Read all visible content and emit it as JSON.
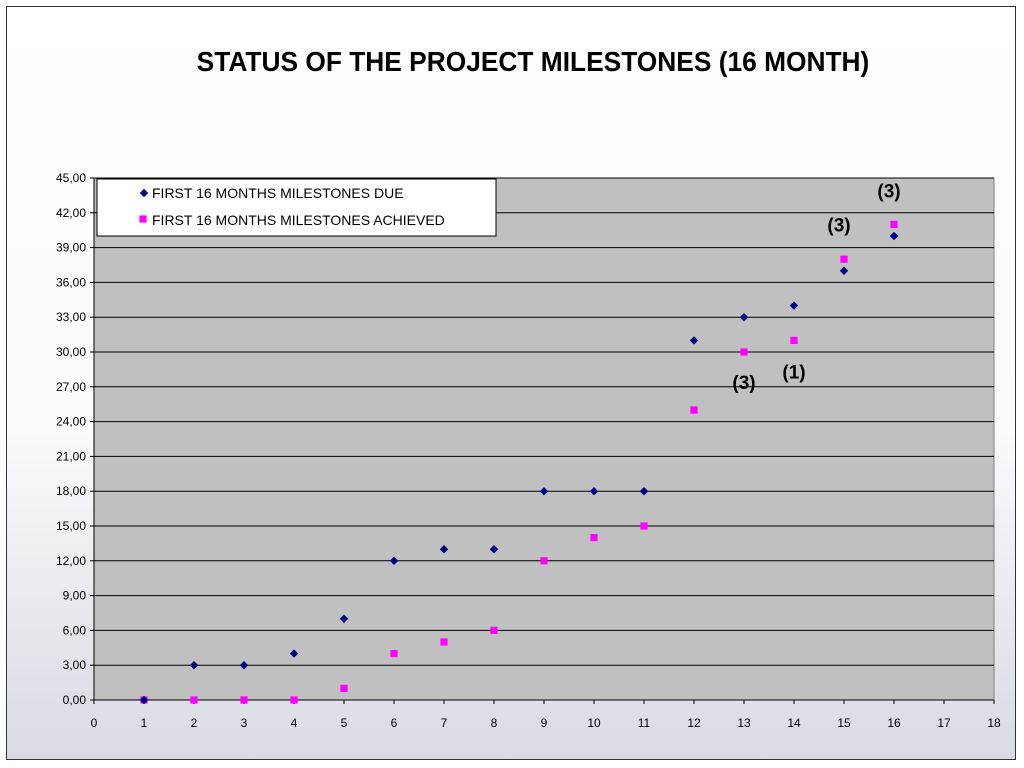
{
  "colors": {
    "plot_background": "#c0c0c0",
    "gridline": "#000000",
    "due_series": "#000080",
    "achieved_series": "#ff00ff"
  },
  "chart_data": {
    "type": "scatter",
    "title": "STATUS OF THE PROJECT MILESTONES (16 MONTH)",
    "xlabel": "",
    "ylabel": "",
    "xlim": [
      0,
      18
    ],
    "ylim": [
      0,
      45
    ],
    "x_ticks": [
      "0",
      "1",
      "2",
      "3",
      "4",
      "5",
      "6",
      "7",
      "8",
      "9",
      "10",
      "11",
      "12",
      "13",
      "14",
      "15",
      "16",
      "17",
      "18"
    ],
    "y_ticks": [
      "0,00",
      "3,00",
      "6,00",
      "9,00",
      "12,00",
      "15,00",
      "18,00",
      "21,00",
      "24,00",
      "27,00",
      "30,00",
      "33,00",
      "36,00",
      "39,00",
      "42,00",
      "45,00"
    ],
    "grid": "horizontal",
    "legend_position": "top-left",
    "series": [
      {
        "name": "FIRST 16 MONTHS MILESTONES DUE",
        "marker": "diamond",
        "x": [
          1,
          2,
          3,
          4,
          5,
          6,
          7,
          8,
          9,
          10,
          11,
          12,
          13,
          14,
          15,
          16
        ],
        "y": [
          0,
          3,
          3,
          4,
          7,
          12,
          13,
          13,
          18,
          18,
          18,
          31,
          33,
          34,
          37,
          40
        ]
      },
      {
        "name": "FIRST 16 MONTHS MILESTONES ACHIEVED",
        "marker": "square",
        "x": [
          1,
          2,
          3,
          4,
          5,
          6,
          7,
          8,
          9,
          10,
          11,
          12,
          13,
          14,
          15,
          16
        ],
        "y": [
          0,
          0,
          0,
          0,
          1,
          4,
          5,
          6,
          12,
          14,
          15,
          25,
          30,
          31,
          38,
          41
        ]
      }
    ],
    "annotations": [
      {
        "text": "(3)",
        "x": 13,
        "y": 26.8
      },
      {
        "text": "(1)",
        "x": 14,
        "y": 27.7
      },
      {
        "text": "(3)",
        "x": 14.9,
        "y": 40.4
      },
      {
        "text": "(3)",
        "x": 15.9,
        "y": 43.3
      }
    ]
  }
}
